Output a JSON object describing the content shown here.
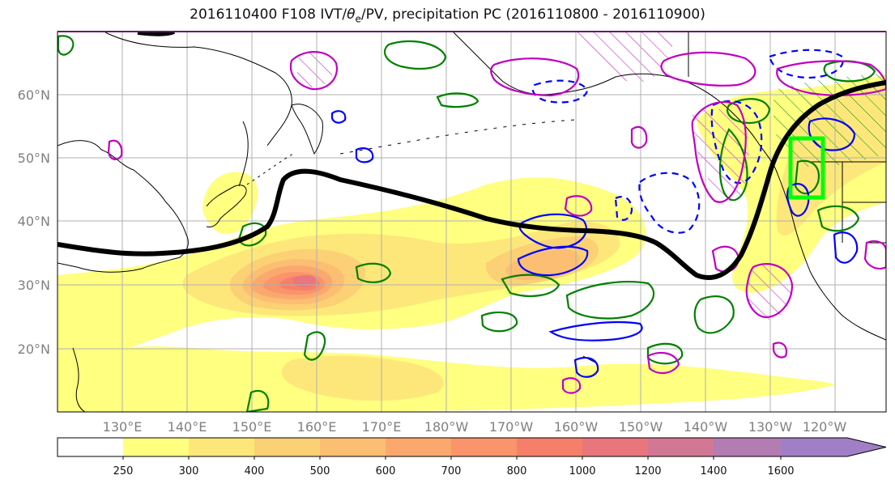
{
  "title": {
    "prefix": "2016110400 F108 IVT/",
    "theta": "θ",
    "theta_sub": "e",
    "suffix": "/PV, precipitation PC (2016110800 - 2016110900)"
  },
  "latitude_labels": [
    "60°N",
    "50°N",
    "40°N",
    "30°N",
    "20°N"
  ],
  "longitude_labels": [
    "130°E",
    "140°E",
    "150°E",
    "160°E",
    "170°E",
    "180°W",
    "170°W",
    "160°W",
    "150°W",
    "140°W",
    "130°W",
    "120°W"
  ],
  "colorbar": {
    "levels": [
      "250",
      "300",
      "400",
      "500",
      "600",
      "700",
      "800",
      "1000",
      "1200",
      "1400",
      "1600"
    ],
    "colors": [
      "#ffffff",
      "#ffff80",
      "#fde77a",
      "#fcd074",
      "#fbbe72",
      "#fba86e",
      "#f9946b",
      "#f67f6a",
      "#e9767d",
      "#d27894",
      "#b37cb3",
      "#a07fc7"
    ]
  },
  "styles": {
    "jet_color": "#000000",
    "pv_color": "#0000ff",
    "theta_e_color": "#008000",
    "precip_box_color": "#00ff00",
    "hatch_color": "#c000c0"
  }
}
